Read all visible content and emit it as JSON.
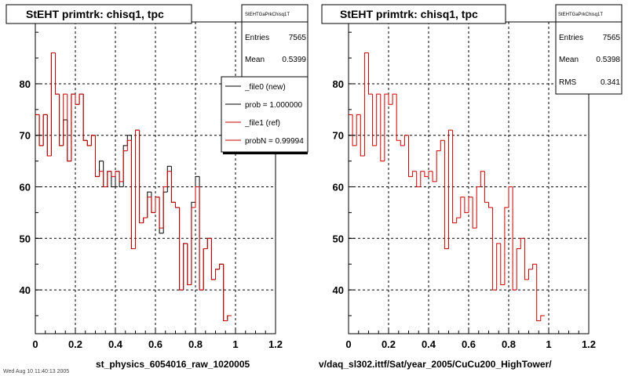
{
  "chart_data": [
    {
      "type": "histogram",
      "title": "StEHT primtrk: chisq1, tpc",
      "xlabel": "st_physics_6054016_raw_1020005",
      "xlim": [
        0,
        1.2
      ],
      "ylim": [
        31.5,
        92
      ],
      "xticks": [
        "0",
        "0.2",
        "0.4",
        "0.6",
        "0.8",
        "1",
        "1.2"
      ],
      "yticks": [
        "40",
        "50",
        "60",
        "70",
        "80"
      ],
      "grid": true,
      "bin_width": 0.02,
      "series": [
        {
          "name": "_file0 (new)",
          "color": "#000000",
          "values": [
            74,
            68,
            74,
            66,
            86,
            78,
            68,
            73,
            65,
            78,
            76,
            78,
            69,
            68,
            70,
            62,
            65,
            60,
            63,
            60,
            63,
            60,
            68,
            70,
            48,
            71,
            53,
            54,
            59,
            55,
            58,
            51,
            59,
            64,
            57,
            56,
            40,
            49,
            41,
            57,
            62,
            40,
            48,
            50,
            42,
            44,
            45,
            34,
            35
          ]
        },
        {
          "name": "_file1 (ref)",
          "color": "#cc0000",
          "values": [
            74,
            68,
            74,
            66,
            86,
            78,
            68,
            78,
            65,
            78,
            76,
            78,
            69,
            68,
            70,
            62,
            63,
            60,
            63,
            62,
            63,
            61,
            67,
            69,
            48,
            71,
            53,
            54,
            58,
            55,
            58,
            52,
            60,
            63,
            57,
            56,
            40,
            49,
            41,
            56,
            60,
            40,
            48,
            50,
            42,
            44,
            45,
            34,
            35
          ]
        }
      ],
      "stats": {
        "header": "StEHTGaPrkChisq1T",
        "entries": "7565",
        "mean": "0.5399"
      },
      "legend": {
        "rows": [
          "_file0 (new)",
          "prob = 1.000000",
          "_file1 (ref)",
          "probN = 0.99994"
        ],
        "placement": "top-right"
      }
    },
    {
      "type": "histogram",
      "title": "StEHT primtrk: chisq1, tpc",
      "xlabel": "v/daq_sl302.ittf/Sat/year_2005/CuCu200_HighTower/",
      "xlim": [
        0,
        1.2
      ],
      "ylim": [
        31.5,
        92
      ],
      "xticks": [
        "0",
        "0.2",
        "0.4",
        "0.6",
        "0.8",
        "1",
        "1.2"
      ],
      "yticks": [
        "40",
        "50",
        "60",
        "70",
        "80"
      ],
      "grid": true,
      "bin_width": 0.02,
      "series": [
        {
          "name": "",
          "color": "#cc0000",
          "values": [
            74,
            68,
            74,
            66,
            86,
            78,
            68,
            78,
            65,
            78,
            76,
            78,
            69,
            68,
            70,
            62,
            63,
            60,
            63,
            62,
            63,
            61,
            67,
            69,
            48,
            71,
            53,
            54,
            58,
            55,
            58,
            52,
            60,
            63,
            57,
            56,
            40,
            49,
            41,
            56,
            60,
            40,
            48,
            50,
            42,
            44,
            45,
            34,
            35
          ]
        }
      ],
      "stats": {
        "header": "StEHTGaPrkChisq1T",
        "entries": "7565",
        "mean": "0.5398",
        "rms": "0.341"
      }
    }
  ],
  "labels": {
    "entries": "Entries",
    "mean": "Mean",
    "rms": "RMS"
  },
  "footer": {
    "text": "Wed Aug 10 11:40:13 2005"
  },
  "colors": {
    "ref": "#cc0000",
    "new": "#000000",
    "grid": "#000000"
  }
}
